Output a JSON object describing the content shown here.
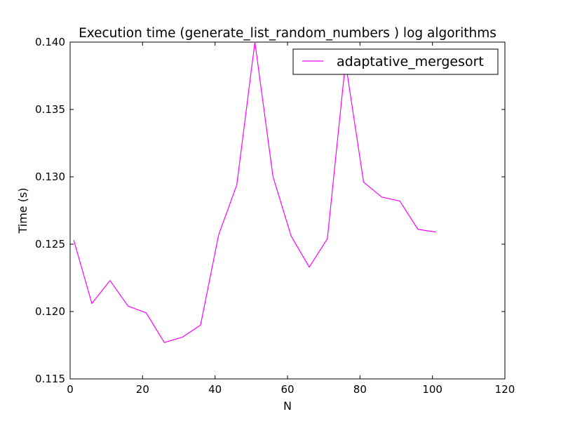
{
  "chart_data": {
    "type": "line",
    "title": "Execution time (generate_list_random_numbers ) log algorithms",
    "xlabel": "N",
    "ylabel": "Time (s)",
    "xlim": [
      0,
      120
    ],
    "ylim": [
      0.115,
      0.14
    ],
    "xticks": [
      0,
      20,
      40,
      60,
      80,
      100,
      120
    ],
    "yticks": [
      0.115,
      0.12,
      0.125,
      0.13,
      0.135,
      0.14
    ],
    "xtick_labels": [
      "0",
      "20",
      "40",
      "60",
      "80",
      "100",
      "120"
    ],
    "ytick_labels": [
      "0.115",
      "0.120",
      "0.125",
      "0.130",
      "0.135",
      "0.140"
    ],
    "grid": false,
    "legend": {
      "placement": "top-right"
    },
    "series": [
      {
        "name": "adaptative_mergesort",
        "color": "#ff00ff",
        "x": [
          1,
          6,
          11,
          16,
          21,
          26,
          31,
          36,
          41,
          46,
          51,
          56,
          61,
          66,
          71,
          76,
          81,
          86,
          91,
          96,
          101
        ],
        "y": [
          0.1253,
          0.1206,
          0.1223,
          0.1204,
          0.1199,
          0.1177,
          0.1181,
          0.119,
          0.1257,
          0.1294,
          0.14,
          0.13,
          0.1256,
          0.1233,
          0.1254,
          0.1385,
          0.1296,
          0.1285,
          0.1282,
          0.1261,
          0.1259
        ]
      }
    ]
  }
}
